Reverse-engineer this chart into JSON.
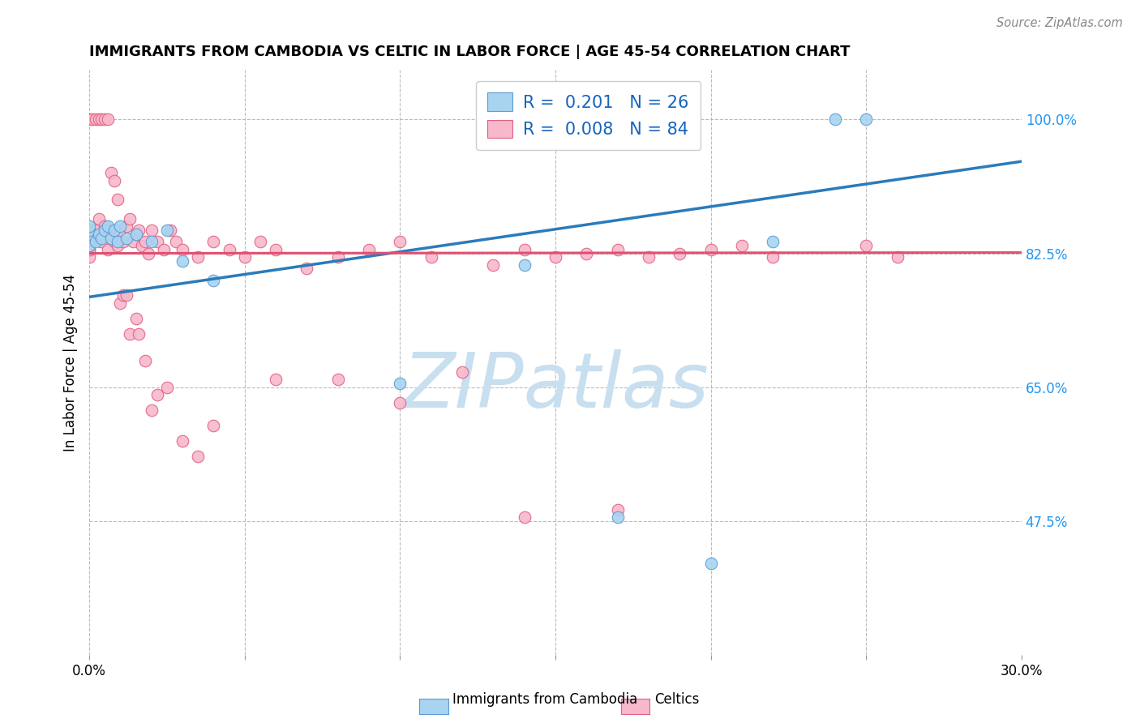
{
  "title": "IMMIGRANTS FROM CAMBODIA VS CELTIC IN LABOR FORCE | AGE 45-54 CORRELATION CHART",
  "source": "Source: ZipAtlas.com",
  "ylabel": "In Labor Force | Age 45-54",
  "xlim": [
    0.0,
    0.3
  ],
  "ylim": [
    0.3,
    1.065
  ],
  "yticks": [
    0.475,
    0.65,
    0.825,
    1.0
  ],
  "ytick_labels": [
    "47.5%",
    "65.0%",
    "82.5%",
    "100.0%"
  ],
  "xticks": [
    0.0,
    0.05,
    0.1,
    0.15,
    0.2,
    0.25,
    0.3
  ],
  "xtick_labels": [
    "0.0%",
    "",
    "",
    "",
    "",
    "",
    "30.0%"
  ],
  "legend_r_cambodia": "0.201",
  "legend_n_cambodia": "26",
  "legend_r_celtic": "0.008",
  "legend_n_celtic": "84",
  "color_cambodia": "#A8D4F0",
  "color_celtic": "#F7B8CB",
  "edge_cambodia": "#5B9BD5",
  "edge_celtic": "#E06080",
  "trendline_cambodia_color": "#2B7BBA",
  "trendline_celtic_color": "#E05070",
  "cam_trend_x0": 0.0,
  "cam_trend_y0": 0.768,
  "cam_trend_x1": 0.3,
  "cam_trend_y1": 0.945,
  "cel_trend_x0": 0.0,
  "cel_trend_y0": 0.825,
  "cel_trend_x1": 0.3,
  "cel_trend_y1": 0.826,
  "watermark_text": "ZIPatlas",
  "watermark_color": "#C8DFF0",
  "cambodia_x": [
    0.0,
    0.0,
    0.0,
    0.0,
    0.002,
    0.003,
    0.004,
    0.005,
    0.006,
    0.007,
    0.008,
    0.009,
    0.01,
    0.012,
    0.015,
    0.02,
    0.025,
    0.03,
    0.04,
    0.1,
    0.14,
    0.17,
    0.2,
    0.22,
    0.24,
    0.25
  ],
  "cambodia_y": [
    0.845,
    0.855,
    0.835,
    0.86,
    0.84,
    0.85,
    0.845,
    0.855,
    0.86,
    0.845,
    0.855,
    0.84,
    0.86,
    0.845,
    0.85,
    0.84,
    0.855,
    0.815,
    0.79,
    0.655,
    0.81,
    0.48,
    0.42,
    0.84,
    1.0,
    1.0
  ],
  "celtic_x": [
    0.0,
    0.0,
    0.0,
    0.0,
    0.0,
    0.0,
    0.0,
    0.0,
    0.0,
    0.0,
    0.002,
    0.003,
    0.004,
    0.005,
    0.006,
    0.007,
    0.008,
    0.009,
    0.01,
    0.011,
    0.012,
    0.013,
    0.014,
    0.015,
    0.016,
    0.017,
    0.018,
    0.019,
    0.02,
    0.022,
    0.024,
    0.026,
    0.028,
    0.03,
    0.035,
    0.04,
    0.045,
    0.05,
    0.055,
    0.06,
    0.07,
    0.08,
    0.09,
    0.1,
    0.11,
    0.13,
    0.14,
    0.15,
    0.16,
    0.17,
    0.18,
    0.19,
    0.2,
    0.21,
    0.22,
    0.25,
    0.26,
    0.001,
    0.002,
    0.003,
    0.004,
    0.005,
    0.006,
    0.007,
    0.008,
    0.009,
    0.01,
    0.011,
    0.012,
    0.013,
    0.015,
    0.016,
    0.018,
    0.02,
    0.022,
    0.025,
    0.03,
    0.035,
    0.04,
    0.06,
    0.08,
    0.1,
    0.12,
    0.14,
    0.17
  ],
  "celtic_y": [
    0.83,
    0.84,
    0.82,
    0.855,
    0.83,
    0.84,
    0.845,
    0.835,
    0.85,
    1.0,
    0.855,
    0.87,
    0.84,
    0.86,
    0.83,
    0.855,
    0.84,
    0.835,
    0.855,
    0.84,
    0.86,
    0.87,
    0.84,
    0.85,
    0.855,
    0.835,
    0.84,
    0.825,
    0.855,
    0.84,
    0.83,
    0.855,
    0.84,
    0.83,
    0.82,
    0.84,
    0.83,
    0.82,
    0.84,
    0.83,
    0.805,
    0.82,
    0.83,
    0.84,
    0.82,
    0.81,
    0.83,
    0.82,
    0.825,
    0.83,
    0.82,
    0.825,
    0.83,
    0.835,
    0.82,
    0.835,
    0.82,
    1.0,
    1.0,
    1.0,
    1.0,
    1.0,
    1.0,
    0.93,
    0.92,
    0.895,
    0.76,
    0.77,
    0.77,
    0.72,
    0.74,
    0.72,
    0.685,
    0.62,
    0.64,
    0.65,
    0.58,
    0.56,
    0.6,
    0.66,
    0.66,
    0.63,
    0.67,
    0.48,
    0.49
  ]
}
